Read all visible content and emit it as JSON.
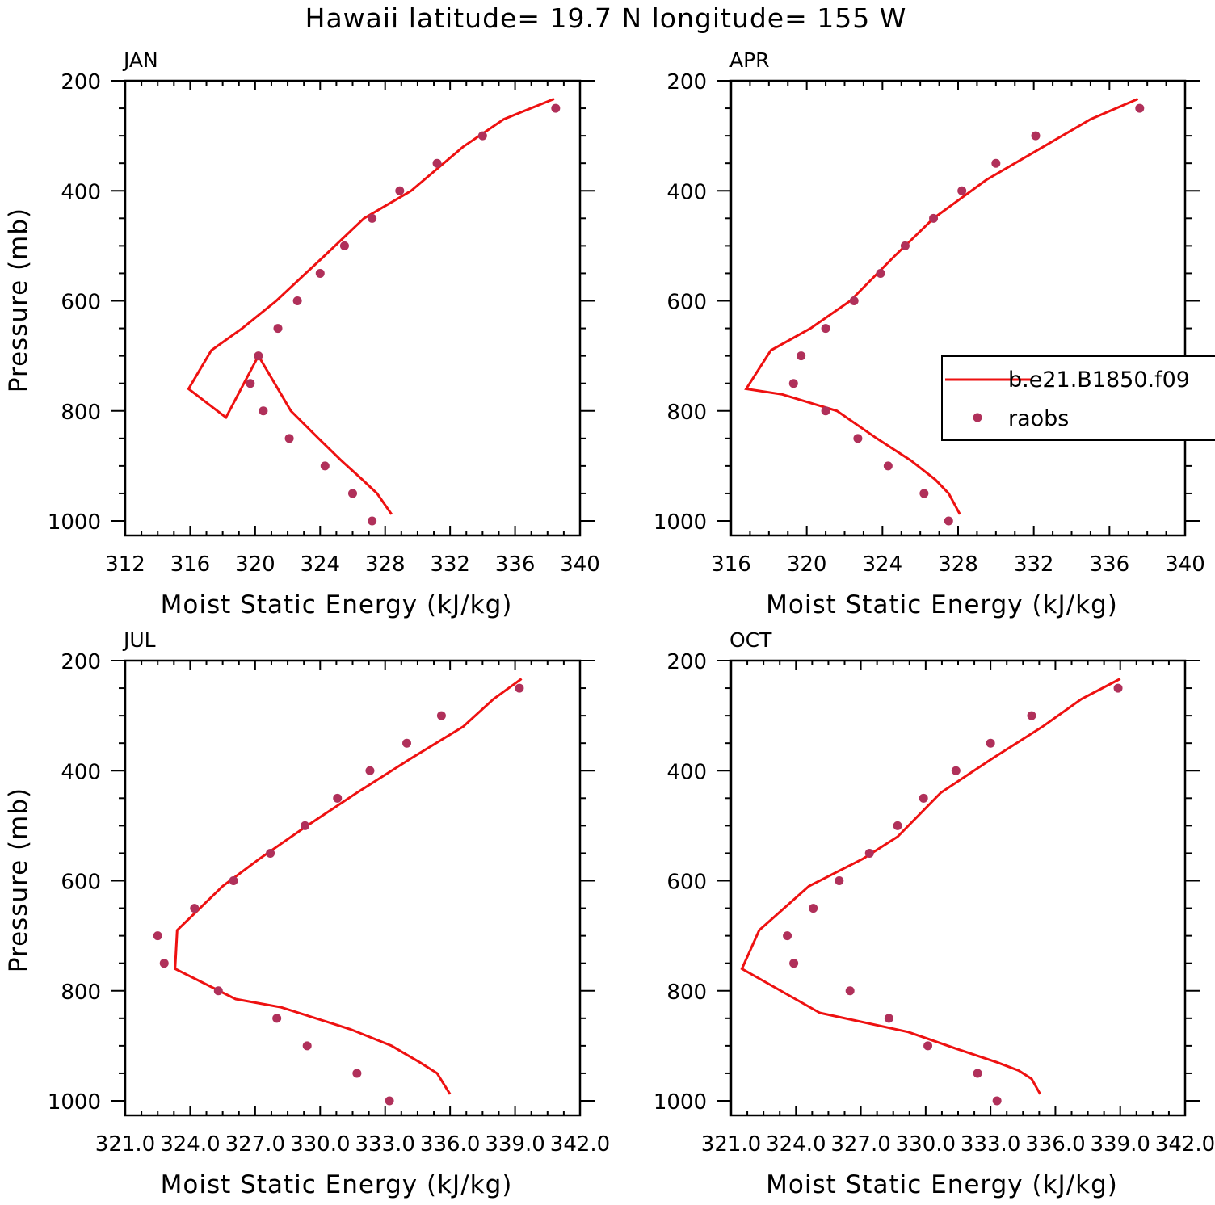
{
  "figure_title": "Hawaii  latitude= 19.7 N longitude= 155 W",
  "legend": {
    "model_label": "b.e21.B1850.f09",
    "obs_label": "raobs"
  },
  "colors": {
    "model_line": "#ee1111",
    "obs_marker": "#b0305a",
    "axes": "#000000"
  },
  "chart_data": [
    {
      "type": "line",
      "panel_label": "JAN",
      "xlabel": "Moist Static Energy (kJ/kg)",
      "ylabel": "Pressure (mb)",
      "xlim": [
        312,
        340
      ],
      "ylim": [
        1000,
        200
      ],
      "x_ticks": [
        312,
        316,
        320,
        324,
        328,
        332,
        336,
        340
      ],
      "x_tick_labels": [
        "312",
        "316",
        "320",
        "324",
        "328",
        "332",
        "336",
        "340"
      ],
      "y_ticks": [
        200,
        400,
        600,
        800,
        1000
      ],
      "y_tick_labels": [
        "200",
        "400",
        "600",
        "800",
        "1000"
      ],
      "series": [
        {
          "name": "b.e21.B1850.f09",
          "kind": "line",
          "x": [
            328.4,
            327.5,
            326.6,
            325.3,
            323.9,
            322.2,
            320.2,
            318.2,
            315.9,
            317.3,
            319.2,
            321.3,
            324.2,
            326.7,
            329.6,
            332.8,
            335.3,
            338.4
          ],
          "p": [
            988,
            950,
            925,
            890,
            850,
            800,
            700,
            812,
            760,
            690,
            650,
            600,
            520,
            450,
            400,
            320,
            270,
            233
          ]
        },
        {
          "name": "raobs",
          "kind": "scatter",
          "x": [
            327.2,
            326.0,
            324.3,
            322.1,
            320.5,
            319.7,
            320.2,
            321.4,
            322.6,
            324.0,
            325.5,
            327.2,
            328.9,
            331.2,
            334.0,
            338.5
          ],
          "p": [
            1000,
            950,
            900,
            850,
            800,
            750,
            700,
            650,
            600,
            550,
            500,
            450,
            400,
            350,
            300,
            250
          ]
        }
      ]
    },
    {
      "type": "line",
      "panel_label": "APR",
      "xlabel": "Moist Static Energy (kJ/kg)",
      "ylabel": "",
      "xlim": [
        316,
        340
      ],
      "ylim": [
        1000,
        200
      ],
      "x_ticks": [
        316,
        320,
        324,
        328,
        332,
        336,
        340
      ],
      "x_tick_labels": [
        "316",
        "320",
        "324",
        "328",
        "332",
        "336",
        "340"
      ],
      "y_ticks": [
        200,
        400,
        600,
        800,
        1000
      ],
      "y_tick_labels": [
        "200",
        "400",
        "600",
        "800",
        "1000"
      ],
      "series": [
        {
          "name": "b.e21.B1850.f09",
          "kind": "line",
          "x": [
            328.1,
            327.5,
            326.8,
            325.5,
            323.7,
            321.6,
            318.7,
            316.8,
            318.1,
            320.2,
            322.3,
            324.6,
            326.7,
            329.5,
            332.0,
            335.0,
            337.5
          ],
          "p": [
            988,
            950,
            925,
            890,
            850,
            800,
            770,
            760,
            690,
            650,
            600,
            520,
            450,
            380,
            330,
            270,
            233
          ]
        },
        {
          "name": "raobs",
          "kind": "scatter",
          "x": [
            327.5,
            326.2,
            324.3,
            322.7,
            321.0,
            319.3,
            319.7,
            321.0,
            322.5,
            323.9,
            325.2,
            326.7,
            328.2,
            330.0,
            332.1,
            337.6
          ],
          "p": [
            1000,
            950,
            900,
            850,
            800,
            750,
            700,
            650,
            600,
            550,
            500,
            450,
            400,
            350,
            300,
            250
          ]
        }
      ]
    },
    {
      "type": "line",
      "panel_label": "JUL",
      "xlabel": "Moist Static Energy (kJ/kg)",
      "ylabel": "Pressure (mb)",
      "xlim": [
        321.0,
        342.0
      ],
      "ylim": [
        1000,
        200
      ],
      "x_ticks": [
        321.0,
        324.0,
        327.0,
        330.0,
        333.0,
        336.0,
        339.0,
        342.0
      ],
      "x_tick_labels": [
        "321.0",
        "324.0",
        "327.0",
        "330.0",
        "333.0",
        "336.0",
        "339.0",
        "342.0"
      ],
      "y_ticks": [
        200,
        400,
        600,
        800,
        1000
      ],
      "y_tick_labels": [
        "200",
        "400",
        "600",
        "800",
        "1000"
      ],
      "series": [
        {
          "name": "b.e21.B1850.f09",
          "kind": "line",
          "x": [
            336.0,
            335.4,
            334.6,
            333.3,
            331.4,
            328.2,
            326.1,
            323.3,
            323.4,
            325.5,
            327.2,
            329.4,
            331.7,
            334.1,
            336.6,
            338.0,
            339.3
          ],
          "p": [
            988,
            950,
            930,
            900,
            870,
            830,
            815,
            760,
            690,
            610,
            560,
            500,
            440,
            380,
            320,
            270,
            233
          ]
        },
        {
          "name": "raobs",
          "kind": "scatter",
          "x": [
            333.2,
            331.7,
            329.4,
            328.0,
            325.3,
            322.8,
            322.5,
            324.2,
            326.0,
            327.7,
            329.3,
            330.8,
            332.3,
            334.0,
            335.6,
            339.2
          ],
          "p": [
            1000,
            950,
            900,
            850,
            800,
            750,
            700,
            650,
            600,
            550,
            500,
            450,
            400,
            350,
            300,
            250
          ]
        }
      ]
    },
    {
      "type": "line",
      "panel_label": "OCT",
      "xlabel": "Moist Static Energy (kJ/kg)",
      "ylabel": "",
      "xlim": [
        321.0,
        342.0
      ],
      "ylim": [
        1000,
        200
      ],
      "x_ticks": [
        321.0,
        324.0,
        327.0,
        330.0,
        333.0,
        336.0,
        339.0,
        342.0
      ],
      "x_tick_labels": [
        "321.0",
        "324.0",
        "327.0",
        "330.0",
        "333.0",
        "336.0",
        "339.0",
        "342.0"
      ],
      "y_ticks": [
        200,
        400,
        600,
        800,
        1000
      ],
      "y_tick_labels": [
        "200",
        "400",
        "600",
        "800",
        "1000"
      ],
      "series": [
        {
          "name": "b.e21.B1850.f09",
          "kind": "line",
          "x": [
            335.3,
            334.9,
            334.3,
            333.3,
            331.4,
            329.2,
            325.1,
            321.5,
            322.3,
            324.6,
            327.1,
            328.7,
            330.7,
            333.0,
            335.4,
            337.2,
            339.0
          ],
          "p": [
            988,
            960,
            945,
            930,
            905,
            875,
            840,
            760,
            690,
            610,
            560,
            520,
            440,
            380,
            320,
            270,
            233
          ]
        },
        {
          "name": "raobs",
          "kind": "scatter",
          "x": [
            333.3,
            332.4,
            330.1,
            328.3,
            326.5,
            323.9,
            323.6,
            324.8,
            326.0,
            327.4,
            328.7,
            329.9,
            331.4,
            333.0,
            334.9,
            338.9
          ],
          "p": [
            1000,
            950,
            900,
            850,
            800,
            750,
            700,
            650,
            600,
            550,
            500,
            450,
            400,
            350,
            300,
            250
          ]
        }
      ]
    }
  ]
}
